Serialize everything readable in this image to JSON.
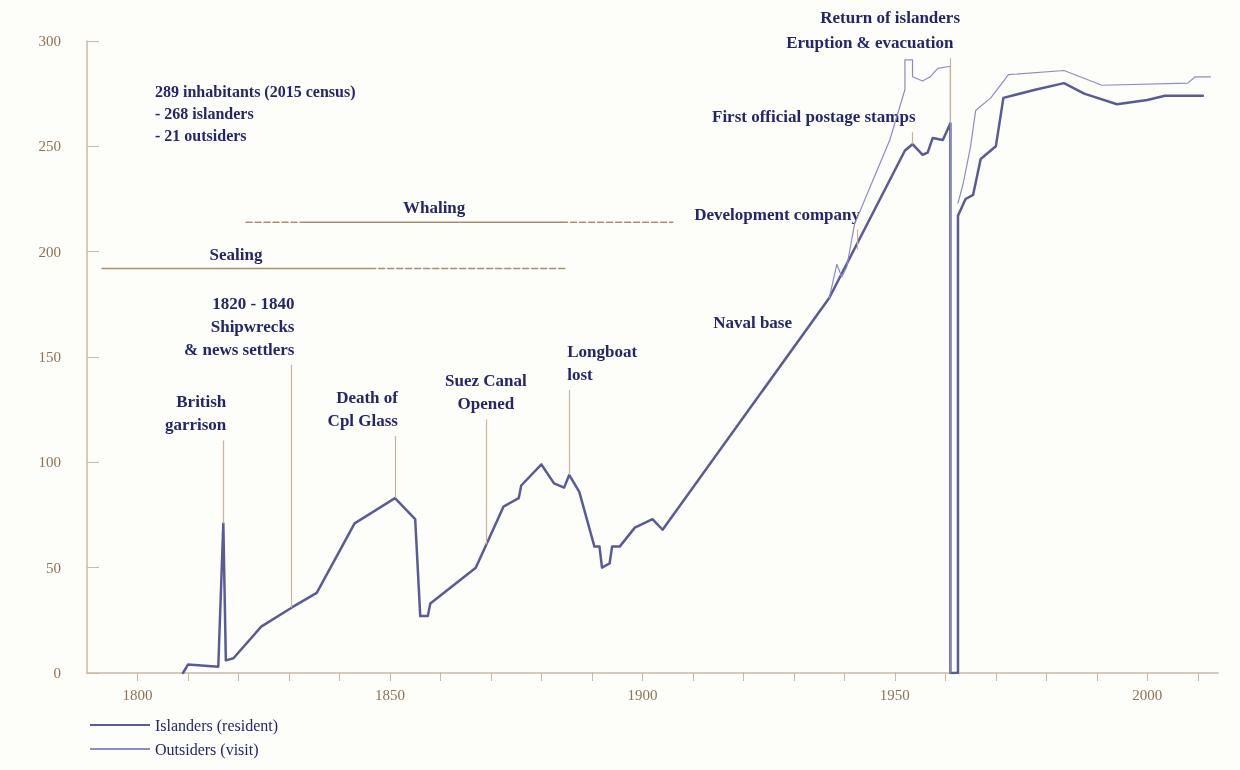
{
  "chart_data": {
    "type": "line",
    "xlim": [
      1790,
      2014
    ],
    "ylim": [
      0,
      300
    ],
    "xticks": [
      {
        "value": 1800,
        "label": "1800"
      },
      {
        "value": 1810,
        "label": null
      },
      {
        "value": 1820,
        "label": null
      },
      {
        "value": 1830,
        "label": null
      },
      {
        "value": 1840,
        "label": null
      },
      {
        "value": 1850,
        "label": "1850"
      },
      {
        "value": 1860,
        "label": null
      },
      {
        "value": 1870,
        "label": null
      },
      {
        "value": 1880,
        "label": null
      },
      {
        "value": 1890,
        "label": null
      },
      {
        "value": 1900,
        "label": "1900"
      },
      {
        "value": 1910,
        "label": null
      },
      {
        "value": 1920,
        "label": null
      },
      {
        "value": 1930,
        "label": null
      },
      {
        "value": 1940,
        "label": null
      },
      {
        "value": 1950,
        "label": "1950"
      },
      {
        "value": 1960,
        "label": null
      },
      {
        "value": 1970,
        "label": null
      },
      {
        "value": 1980,
        "label": null
      },
      {
        "value": 1990,
        "label": null
      },
      {
        "value": 2000,
        "label": "2000"
      },
      {
        "value": 2010,
        "label": null
      }
    ],
    "yticks": [
      0,
      50,
      100,
      150,
      200,
      250,
      300
    ],
    "grid": false,
    "legend": "bottom left",
    "marker": "none",
    "line_style": "solid",
    "series": [
      {
        "name": "Islanders (resident)",
        "color": "#5a5a96",
        "x": [
          1809,
          1810,
          1816,
          1817,
          1817.5,
          1819,
          1824.5,
          1830.5,
          1835.5,
          1843,
          1851,
          1855,
          1856,
          1857.5,
          1858,
          1867,
          1872.5,
          1875.5,
          1876,
          1880,
          1882.5,
          1884.5,
          1885.5,
          1887.5,
          1890.5,
          1891.5,
          1892,
          1893.5,
          1894,
          1895.5,
          1898.5,
          1902,
          1904,
          1937,
          1952,
          1953.5,
          1955.5,
          1956.5,
          1957.5,
          1959.5,
          1961,
          1961,
          1962.5,
          1962.5,
          1964,
          1965.5,
          1967,
          1970,
          1971.5,
          1978,
          1983.5,
          1987.5,
          1994,
          2000,
          2003.5,
          2011
        ],
        "values": [
          0,
          4,
          3,
          71,
          6,
          7,
          22,
          31,
          38,
          71,
          83,
          73,
          27,
          27,
          33,
          50,
          79,
          83,
          89,
          99,
          90,
          88,
          94,
          86,
          60,
          60,
          50,
          52,
          60,
          60,
          69,
          73,
          68,
          178,
          248,
          251,
          246,
          247,
          254,
          253,
          261,
          0,
          0,
          217,
          225,
          227,
          244,
          250,
          273,
          277,
          280,
          275,
          270,
          272,
          274,
          274
        ]
      },
      {
        "name": "Outsiders (visit)",
        "color": "#8c8cc4",
        "x": [
          1937,
          1938.5,
          1939.5,
          1940.5,
          1942,
          1949,
          1952,
          1952,
          1953.5,
          1953.5,
          1955.5,
          1957,
          1958.5,
          1961,
          1961,
          1962,
          1962.5,
          1963.5,
          1965,
          1966,
          1969,
          1972.5,
          1983.5,
          1991,
          2008,
          2009.5,
          2012.5
        ],
        "values": [
          178,
          194,
          188,
          193,
          213,
          253,
          277,
          291,
          291,
          283,
          281,
          283,
          287,
          288,
          0,
          null,
          223,
          232,
          250,
          267,
          273,
          284,
          286,
          279,
          280,
          283,
          283
        ]
      },
      {
        "name": "Sealing",
        "color": "#a8906e",
        "x": [
          1793,
          1846
        ],
        "values": [
          192,
          192
        ]
      },
      {
        "color": "#a8906e",
        "line_style": "dashed",
        "x": [
          1846,
          1885
        ],
        "values": [
          192,
          192
        ]
      },
      {
        "color": "#a8906e",
        "line_style": "dashed",
        "x": [
          1821.5,
          1833.5
        ],
        "values": [
          214,
          214
        ]
      },
      {
        "name": "Whaling",
        "color": "#a8906e",
        "x": [
          1833.5,
          1884
        ],
        "values": [
          214,
          214
        ]
      },
      {
        "color": "#a8906e",
        "line_style": "dashed",
        "x": [
          1884,
          1906
        ],
        "values": [
          214,
          214
        ]
      }
    ],
    "annotations": [
      "289 inhabitants (2015 census)\n- 268 islanders\n- 21 outsiders",
      {
        "text": "British\ngarrison",
        "x": 1817,
        "y": 71
      },
      {
        "text": "1820 - 1840\nShipwrecks\n& news settlers",
        "x": 1830.5,
        "y": 31
      },
      {
        "text": "Death of\nCpl Glass",
        "x": 1851,
        "y": 83
      },
      {
        "text": "Suez Canal\nOpened",
        "x": 1869,
        "y": 61
      },
      {
        "text": "Longboat\nlost",
        "x": 1885.5,
        "y": 94
      },
      "Naval base",
      {
        "text": "Development company",
        "x": 1942.5,
        "y": 201
      },
      {
        "text": "First official postage stamps",
        "x": 1953.5,
        "y": 251
      },
      {
        "text": "Eruption & evacuation",
        "x": 1961,
        "y": 261
      },
      "Return of islanders"
    ]
  }
}
